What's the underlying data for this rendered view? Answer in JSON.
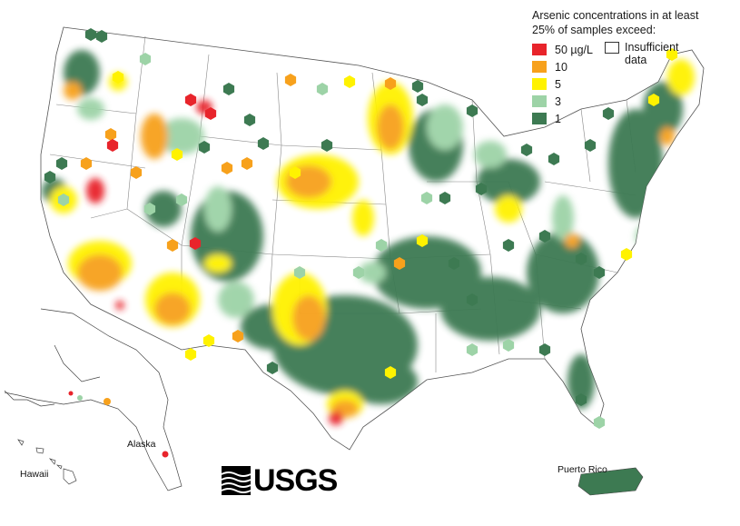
{
  "legend": {
    "title_line1": "Arsenic concentrations in at least",
    "title_line2": "25% of samples exceed:",
    "items": [
      {
        "label": "50 µg/L",
        "color": "#e8242b"
      },
      {
        "label": "10",
        "color": "#f7a11c"
      },
      {
        "label": "5",
        "color": "#fff200"
      },
      {
        "label": "3",
        "color": "#9dd3a7"
      },
      {
        "label": "1",
        "color": "#3d7a52"
      }
    ],
    "insufficient_line1": "Insufficient",
    "insufficient_line2": "data"
  },
  "labels": {
    "alaska": "Alaska",
    "hawaii": "Hawaii",
    "puerto_rico": "Puerto Rico"
  },
  "logo": {
    "text": "USGS"
  }
}
